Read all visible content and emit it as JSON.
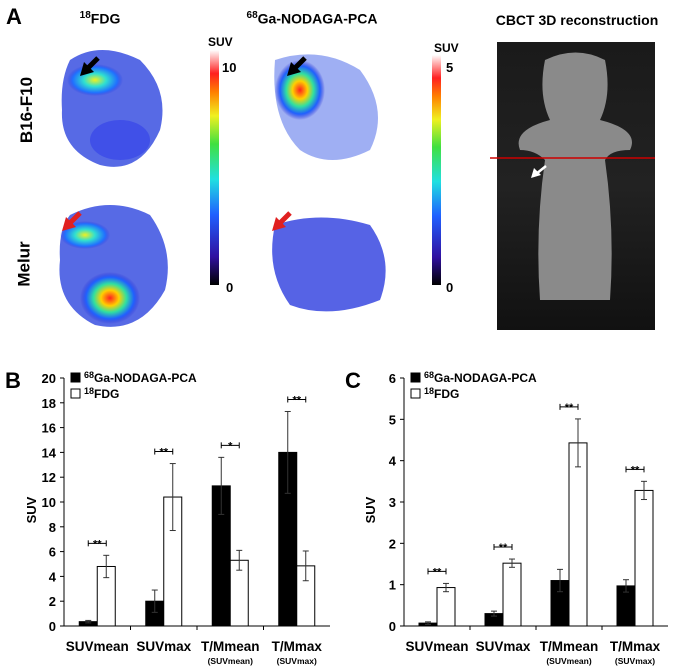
{
  "panel_a": {
    "label": "A",
    "column_titles": [
      {
        "sup": "18",
        "text": "FDG"
      },
      {
        "sup": "68",
        "text": "Ga-NODAGA-PCA"
      },
      {
        "sup": "",
        "text": "CBCT 3D reconstruction"
      }
    ],
    "row_labels": [
      "B16-F10",
      "Melur"
    ],
    "colorbars": [
      {
        "label": "SUV",
        "max": "10",
        "min": "0"
      },
      {
        "label": "SUV",
        "max": "5",
        "min": "0"
      }
    ],
    "colors": {
      "black_arrow": "#000000",
      "red_arrow": "#e02020",
      "cbct_line": "#cc0000",
      "white_arrow": "#ffffff"
    }
  },
  "chart_data": [
    {
      "panel_label": "B",
      "type": "bar",
      "ylabel": "SUV",
      "ylim": [
        0,
        20
      ],
      "yticks": [
        "0",
        "2",
        "4",
        "6",
        "8",
        "10",
        "12",
        "14",
        "16",
        "18",
        "20"
      ],
      "categories": [
        {
          "main": "SUVmean",
          "sub": ""
        },
        {
          "main": "SUVmax",
          "sub": ""
        },
        {
          "main": "T/Mmean",
          "sub": "(SUVmean)"
        },
        {
          "main": "T/Mmax",
          "sub": "(SUVmax)"
        }
      ],
      "legend": [
        {
          "sup": "68",
          "text": "Ga-NODAGA-PCA",
          "color": "#000000"
        },
        {
          "sup": "18",
          "text": "FDG",
          "color": "#ffffff"
        }
      ],
      "series": [
        {
          "name": "68Ga-NODAGA-PCA",
          "values": [
            0.35,
            2.0,
            11.3,
            14.0
          ],
          "errors": [
            0.1,
            0.9,
            2.3,
            3.3
          ]
        },
        {
          "name": "18FDG",
          "values": [
            4.8,
            10.4,
            5.3,
            4.85
          ],
          "errors": [
            0.9,
            2.7,
            0.8,
            1.2
          ]
        }
      ],
      "significance": [
        "**",
        "**",
        "*",
        "**"
      ]
    },
    {
      "panel_label": "C",
      "type": "bar",
      "ylabel": "SUV",
      "ylim": [
        0,
        6
      ],
      "yticks": [
        "0",
        "1",
        "2",
        "3",
        "4",
        "5",
        "6"
      ],
      "categories": [
        {
          "main": "SUVmean",
          "sub": ""
        },
        {
          "main": "SUVmax",
          "sub": ""
        },
        {
          "main": "T/Mmean",
          "sub": "(SUVmean)"
        },
        {
          "main": "T/Mmax",
          "sub": "(SUVmax)"
        }
      ],
      "legend": [
        {
          "sup": "68",
          "text": "Ga-NODAGA-PCA",
          "color": "#000000"
        },
        {
          "sup": "18",
          "text": "FDG",
          "color": "#ffffff"
        }
      ],
      "series": [
        {
          "name": "68Ga-NODAGA-PCA",
          "values": [
            0.07,
            0.3,
            1.1,
            0.97
          ],
          "errors": [
            0.03,
            0.06,
            0.27,
            0.15
          ]
        },
        {
          "name": "18FDG",
          "values": [
            0.93,
            1.52,
            4.43,
            3.28
          ],
          "errors": [
            0.1,
            0.1,
            0.58,
            0.22
          ]
        }
      ],
      "significance": [
        "**",
        "**",
        "**",
        "**"
      ]
    }
  ]
}
